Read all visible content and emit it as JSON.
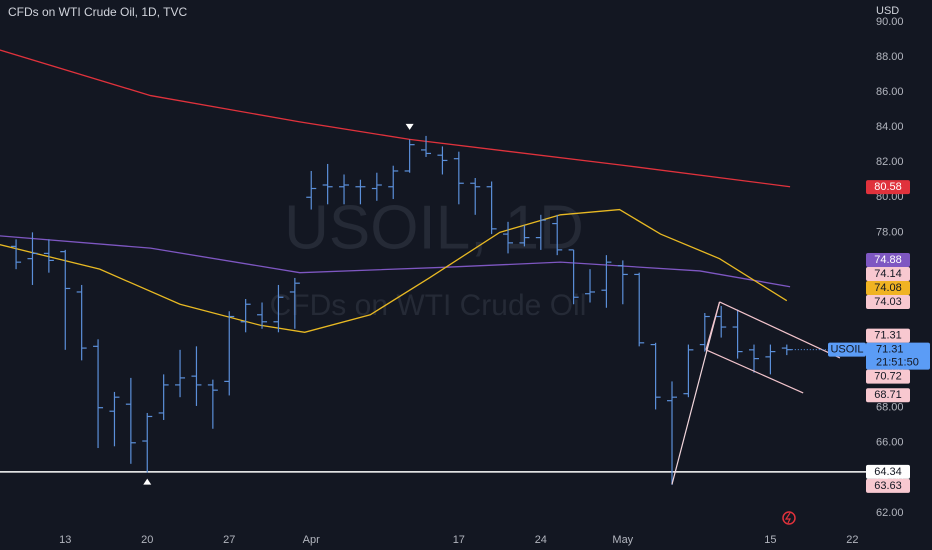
{
  "chart_data": {
    "type": "ohlc",
    "title": "CFDs on WTI Crude Oil, 1D, TVC",
    "watermark": "USOIL, 1D",
    "watermark_subtitle": "CFDs on WTI Crude Oil",
    "currency": "USD",
    "countdown": "21:51:50",
    "xlim": [
      -0.98,
      51.83
    ],
    "ylim": [
      61.14,
      91.25
    ],
    "xticks": [
      {
        "value": 3,
        "label": "13"
      },
      {
        "value": 8,
        "label": "20"
      },
      {
        "value": 13,
        "label": "27"
      },
      {
        "value": 18,
        "label": "Apr"
      },
      {
        "value": 27,
        "label": "17"
      },
      {
        "value": 32,
        "label": "24"
      },
      {
        "value": 37,
        "label": "May"
      },
      {
        "value": 46,
        "label": "15"
      },
      {
        "value": 51,
        "label": "22"
      }
    ],
    "yticks": [
      {
        "value": 62,
        "label": "62.00"
      },
      {
        "value": 64,
        "label": "64.00"
      },
      {
        "value": 66,
        "label": "66.00"
      },
      {
        "value": 68,
        "label": "68.00"
      },
      {
        "value": 70,
        "label": "70.00"
      },
      {
        "value": 72,
        "label": "72.00"
      },
      {
        "value": 74,
        "label": "74.00"
      },
      {
        "value": 76,
        "label": "76.00"
      },
      {
        "value": 78,
        "label": "78.00"
      },
      {
        "value": 80,
        "label": "80.00"
      },
      {
        "value": 82,
        "label": "82.00"
      },
      {
        "value": 84,
        "label": "84.00"
      },
      {
        "value": 86,
        "label": "86.00"
      },
      {
        "value": 88,
        "label": "88.00"
      },
      {
        "value": 90,
        "label": "90.00"
      }
    ],
    "grid": false,
    "x": [
      0,
      1,
      2,
      3,
      4,
      5,
      6,
      7,
      8,
      9,
      10,
      11,
      12,
      13,
      14,
      15,
      16,
      17,
      18,
      19,
      20,
      21,
      22,
      23,
      24,
      25,
      26,
      27,
      28,
      29,
      30,
      31,
      32,
      33,
      34,
      35,
      36,
      37,
      38,
      39,
      40,
      41,
      42,
      43,
      44,
      45,
      46,
      47
    ],
    "series": [
      {
        "name": "USOIL",
        "color": "#5b8fd9",
        "open": [
          77.2,
          76.5,
          76.8,
          76.9,
          74.6,
          71.5,
          67.8,
          68.2,
          66.1,
          67.7,
          69.3,
          69.8,
          69.3,
          69.5,
          72.9,
          73.3,
          72.9,
          74.6,
          80.0,
          80.7,
          80.6,
          80.6,
          80.5,
          80.6,
          81.5,
          82.7,
          82.4,
          82.2,
          80.8,
          80.6,
          77.9,
          77.4,
          77.7,
          78.5,
          77.0,
          74.5,
          74.7,
          76.1,
          75.6,
          71.6,
          68.4,
          68.8,
          71.6,
          73.2,
          72.6,
          71.3,
          70.9,
          71.4
        ],
        "high": [
          77.6,
          78.0,
          77.6,
          77.0,
          75.0,
          71.9,
          68.9,
          69.7,
          67.7,
          69.9,
          71.3,
          71.5,
          69.6,
          73.5,
          74.2,
          74.0,
          75.0,
          75.4,
          81.5,
          81.9,
          81.3,
          81.0,
          81.4,
          81.8,
          83.3,
          83.5,
          82.9,
          82.6,
          81.1,
          80.9,
          78.6,
          78.4,
          79.0,
          79.0,
          77.0,
          75.9,
          76.7,
          76.4,
          75.7,
          71.7,
          69.5,
          71.6,
          73.4,
          73.8,
          73.6,
          71.6,
          71.6,
          71.6
        ],
        "low": [
          75.9,
          75.0,
          75.7,
          71.3,
          70.7,
          65.7,
          65.8,
          64.8,
          64.3,
          67.3,
          68.6,
          68.1,
          66.8,
          68.7,
          72.3,
          72.5,
          72.3,
          72.5,
          79.3,
          79.6,
          79.6,
          79.6,
          79.8,
          79.9,
          81.4,
          82.3,
          81.3,
          79.6,
          79.0,
          77.9,
          76.8,
          77.2,
          77.0,
          76.7,
          73.9,
          74.0,
          73.7,
          73.9,
          71.5,
          67.9,
          63.6,
          68.6,
          71.2,
          72.0,
          70.8,
          70.0,
          69.9,
          71.0
        ],
        "close": [
          76.3,
          76.8,
          76.4,
          74.8,
          71.4,
          68.0,
          68.6,
          66.0,
          67.5,
          69.3,
          69.7,
          69.3,
          69.0,
          73.2,
          73.9,
          72.9,
          74.3,
          75.1,
          80.5,
          80.6,
          80.7,
          80.6,
          80.7,
          81.5,
          83.0,
          82.5,
          82.1,
          80.8,
          80.6,
          78.2,
          77.4,
          77.7,
          78.7,
          77.0,
          74.3,
          74.6,
          76.3,
          75.6,
          71.7,
          68.6,
          68.6,
          71.3,
          73.2,
          72.6,
          71.2,
          70.8,
          71.2,
          71.31
        ]
      }
    ],
    "overlays": [
      {
        "color": "#e0323c",
        "x": [
          -1,
          8.2,
          17.3,
          24,
          36.8,
          47.2
        ],
        "values": [
          88.4,
          85.8,
          84.3,
          83.3,
          81.85,
          80.6
        ]
      },
      {
        "color": "#7e57c2",
        "x": [
          -1,
          8.2,
          17.3,
          25.9,
          33.2,
          41.7,
          47.2
        ],
        "values": [
          77.8,
          77.1,
          75.7,
          76.0,
          76.3,
          75.8,
          74.9
        ]
      },
      {
        "color": "#e8b923",
        "x": [
          -1,
          5.1,
          10,
          14.9,
          17.6,
          21.6,
          25.2,
          29.5,
          33.2,
          36.8,
          39.3,
          42.9,
          47.0
        ],
        "values": [
          77.3,
          75.9,
          73.9,
          72.7,
          72.3,
          73.3,
          75.4,
          78.0,
          79.0,
          79.3,
          77.9,
          76.5,
          74.1
        ]
      }
    ],
    "drawings": [
      {
        "color": "#f2d6dc",
        "x": [
          40,
          42.9
        ],
        "values": [
          63.63,
          74.03
        ]
      },
      {
        "color": "#f2c4cc",
        "x": [
          42.9,
          50.24
        ],
        "values": [
          74.03,
          70.84
        ]
      },
      {
        "color": "#f2c4cc",
        "x": [
          42.07,
          42.9
        ],
        "values": [
          71.3,
          74.03
        ]
      },
      {
        "color": "#f2c4cc",
        "x": [
          42.07,
          48.0
        ],
        "values": [
          71.3,
          68.84
        ]
      }
    ],
    "hline": {
      "value": 64.34,
      "color": "#ffffff"
    },
    "markers": [
      {
        "x": 24,
        "value": 83.5,
        "direction": "down"
      },
      {
        "x": 8,
        "value": 64.3,
        "direction": "up"
      }
    ],
    "price_labels": [
      {
        "value": 80.58,
        "color": "#e0323c",
        "text_color": "#ffffff"
      },
      {
        "value": 74.88,
        "color": "#7e57c2",
        "text_color": "#ffffff"
      },
      {
        "value": 74.14,
        "color": "#f8c8d0",
        "text_color": "#131722"
      },
      {
        "value": 74.08,
        "color": "#f0b323",
        "text_color": "#131722"
      },
      {
        "value": 74.03,
        "color": "#f8c8d0",
        "text_color": "#131722"
      },
      {
        "value": 71.31,
        "color": "#f8c8d0",
        "text_color": "#131722"
      },
      {
        "value": 70.72,
        "color": "#f8c8d0",
        "text_color": "#131722"
      },
      {
        "value": 68.71,
        "color": "#f8c8d0",
        "text_color": "#131722"
      },
      {
        "value": 64.34,
        "color": "#ffffff",
        "text_color": "#131722"
      },
      {
        "value": 63.63,
        "color": "#f8c8d0",
        "text_color": "#131722"
      }
    ],
    "current_color": "#5b9cf6"
  }
}
